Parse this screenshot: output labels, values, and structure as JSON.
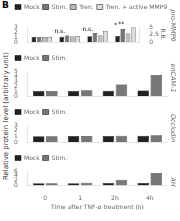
{
  "ylabel": "Relative protein level (arbitrary unit)",
  "annotations": [
    {
      "text": "B"
    }
  ],
  "chart_data": [
    {
      "type": "bar",
      "title": "pro-MMP9",
      "categories": [
        "0",
        "1",
        "2h",
        "4h"
      ],
      "series": [
        {
          "name": "Mock",
          "color": "#222222",
          "values": [
            1.0,
            1.05,
            1.15,
            1.2
          ]
        },
        {
          "name": "Stim.",
          "color": "#777777",
          "values": [
            1.0,
            1.3,
            1.8,
            2.6
          ]
        },
        {
          "name": "Tren.",
          "color": "#bbbbbb",
          "values": [
            1.0,
            1.1,
            1.3,
            1.7
          ]
        },
        {
          "name": "Tren. + active MMP9",
          "color": "#dddddd",
          "values": [
            1.0,
            1.2,
            2.2,
            2.9
          ]
        }
      ],
      "ylim": [
        0,
        3
      ],
      "yticks": [
        0,
        1,
        2,
        3
      ],
      "y2lim": [
        0,
        5
      ],
      "y2ticks": [
        0,
        2.5,
        5
      ],
      "y2label": "R.B.",
      "annotations": [
        {
          "x": "1",
          "y": 1.45,
          "text": "n.s."
        },
        {
          "x": "2h",
          "y": 1.95,
          "text": "n.s."
        },
        {
          "x": "4h",
          "y": 2.75,
          "text": "*"
        },
        {
          "x": "4h",
          "y": 3.0,
          "text": "**"
        }
      ],
      "legend": "upper left",
      "grid": false,
      "tick_labels": "y"
    },
    {
      "type": "bar",
      "title": "enCAM-1",
      "categories": [
        "0",
        "1",
        "2h",
        "4h"
      ],
      "series": [
        {
          "name": "Mock",
          "color": "#222222",
          "values": [
            1.0,
            1.0,
            1.05,
            1.1
          ]
        },
        {
          "name": "Stim.",
          "color": "#777777",
          "values": [
            1.0,
            1.15,
            2.3,
            4.2
          ]
        }
      ],
      "ylim": [
        0,
        5
      ],
      "yticks": [
        0,
        1,
        2,
        3,
        4,
        5
      ],
      "legend": "upper left",
      "grid": false,
      "tick_labels": "y"
    },
    {
      "type": "bar",
      "title": "Occludin",
      "categories": [
        "0",
        "1",
        "2h",
        "4h"
      ],
      "series": [
        {
          "name": "Mock",
          "color": "#222222",
          "values": [
            1.0,
            1.05,
            1.08,
            1.1
          ]
        },
        {
          "name": "Stim.",
          "color": "#777777",
          "values": [
            1.0,
            1.05,
            1.12,
            1.18
          ]
        }
      ],
      "ylim": [
        0,
        3
      ],
      "yticks": [
        0,
        1,
        2,
        3
      ],
      "legend": "upper left",
      "grid": false,
      "tick_labels": "y"
    },
    {
      "type": "bar",
      "title": "AH",
      "categories": [
        "0",
        "1",
        "2h",
        "4h"
      ],
      "series": [
        {
          "name": "Mock",
          "color": "#222222",
          "values": [
            1.0,
            1.0,
            1.05,
            1.1
          ]
        },
        {
          "name": "Stim.",
          "color": "#777777",
          "values": [
            1.0,
            1.2,
            2.4,
            5.2
          ]
        }
      ],
      "ylim": [
        0,
        6
      ],
      "yticks": [
        0,
        2,
        4,
        6
      ],
      "xlabel": "Time after TNF-α treatment (h)",
      "legend": "upper left",
      "grid": false
    }
  ]
}
